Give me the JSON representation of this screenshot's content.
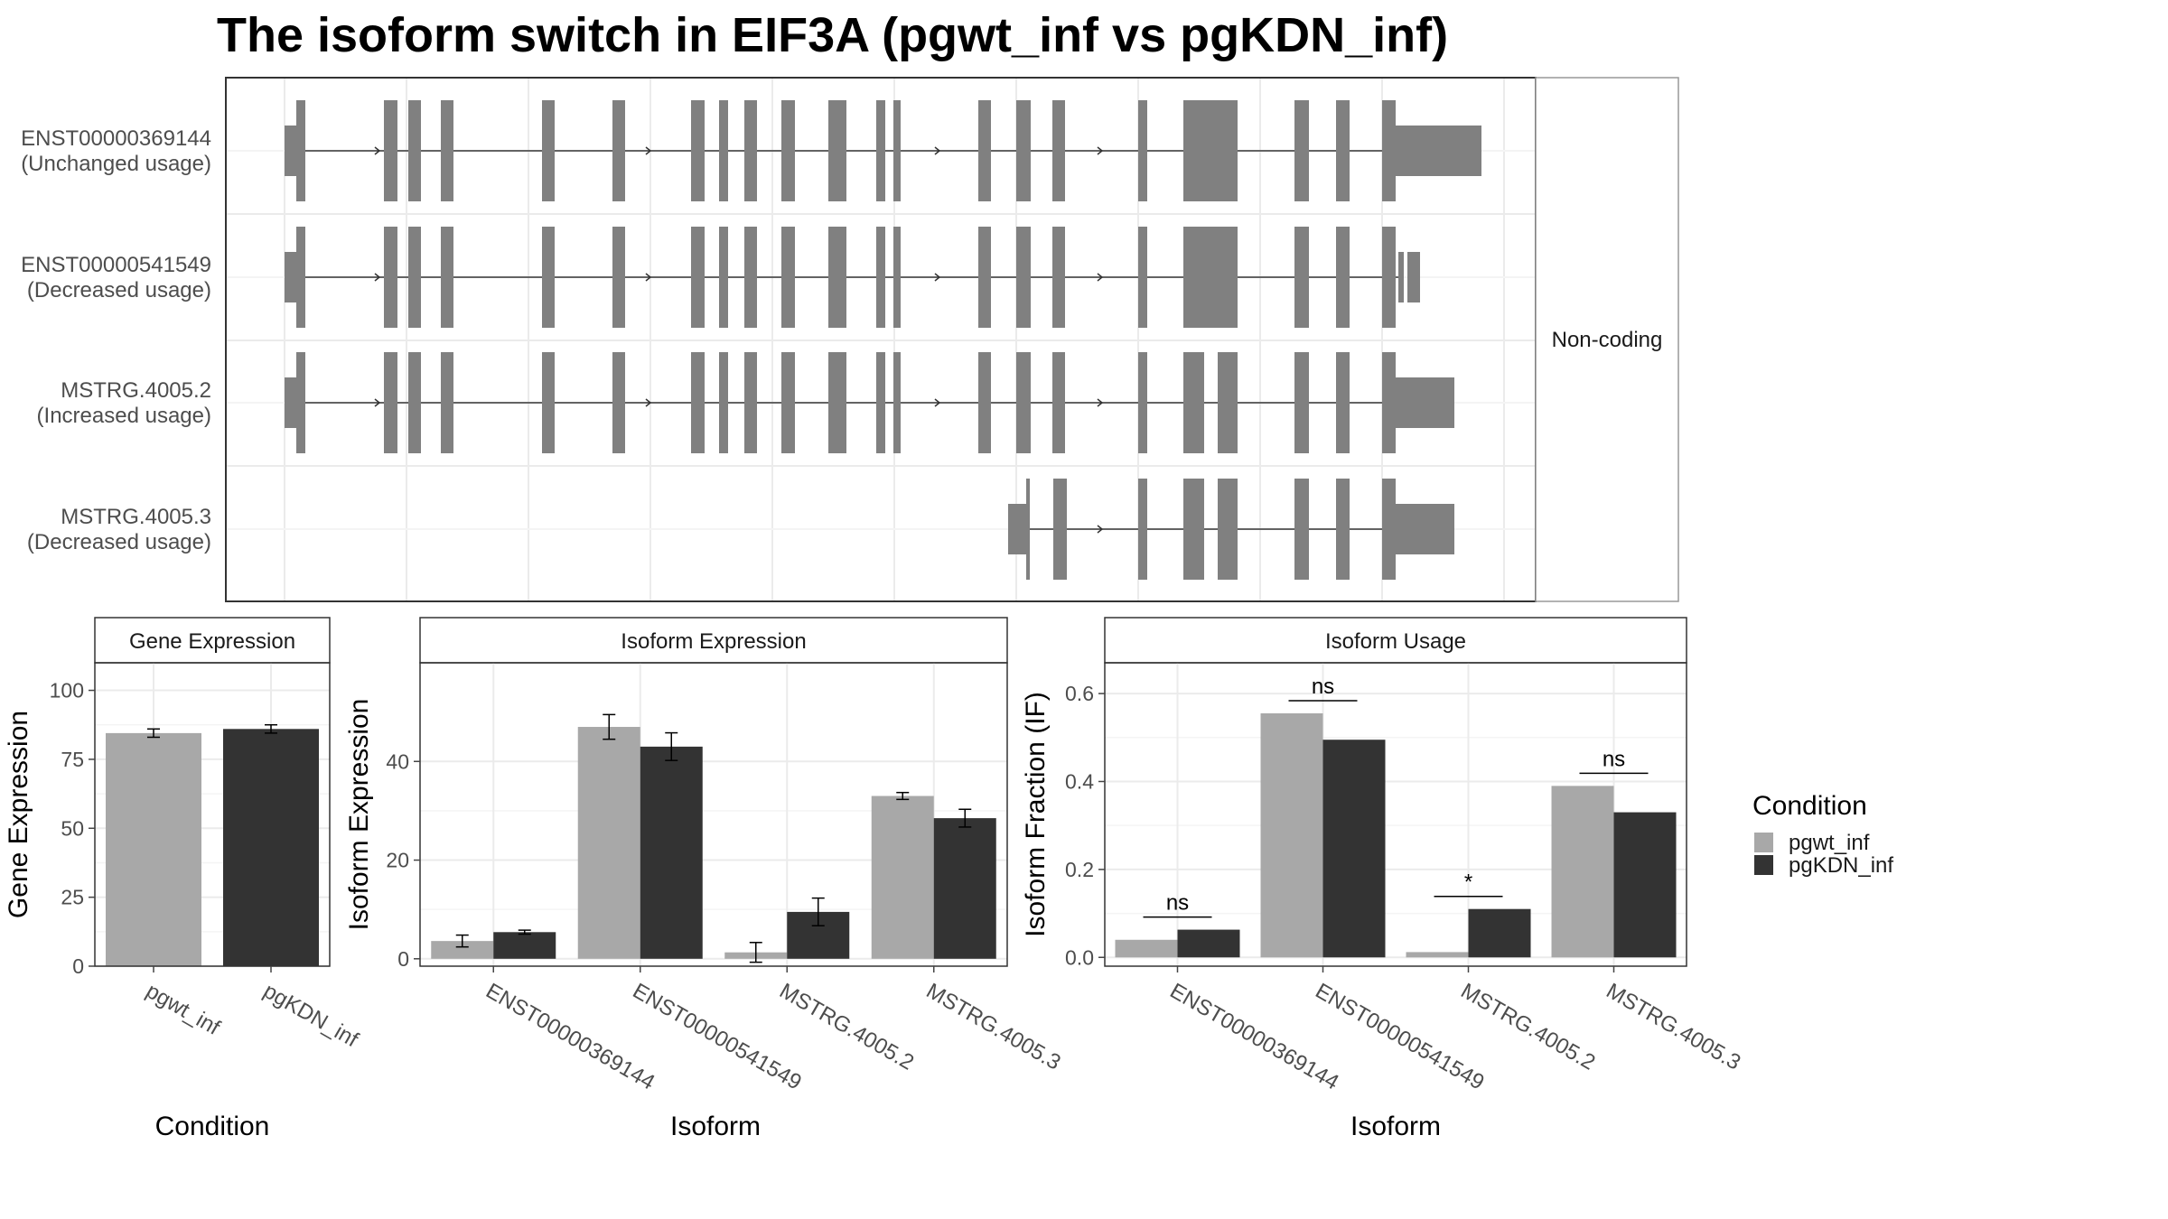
{
  "title": "The isoform switch in EIF3A (pgwt_inf vs pgKDN_inf)",
  "colors": {
    "pgwt_inf": "#a8a8a8",
    "pgKDN_inf": "#333333",
    "isoform_model": "#808080"
  },
  "structure_panel": {
    "strip_label": "Non-coding",
    "isoforms": [
      {
        "id": "ENST00000369144",
        "note": "(Unchanged usage)"
      },
      {
        "id": "ENST00000541549",
        "note": "(Decreased usage)"
      },
      {
        "id": "MSTRG.4005.2",
        "note": "(Increased usage)"
      },
      {
        "id": "MSTRG.4005.3",
        "note": "(Decreased usage)"
      }
    ]
  },
  "legend": {
    "title": "Condition",
    "items": [
      "pgwt_inf",
      "pgKDN_inf"
    ]
  },
  "chart_data": [
    {
      "type": "bar",
      "panel": "Gene Expression",
      "xlabel": "Condition",
      "ylabel": "Gene Expression",
      "categories": [
        "pgwt_inf",
        "pgKDN_inf"
      ],
      "values": [
        84.5,
        86
      ],
      "errors": [
        1.5,
        1.5
      ],
      "ylim": [
        0,
        110
      ],
      "yticks": [
        0,
        25,
        50,
        75,
        100
      ],
      "grid": true
    },
    {
      "type": "bar",
      "panel": "Isoform Expression",
      "xlabel": "Isoform",
      "ylabel": "Isoform Expression",
      "categories": [
        "ENST00000369144",
        "ENST00000541549",
        "MSTRG.4005.2",
        "MSTRG.4005.3"
      ],
      "series": [
        {
          "name": "pgwt_inf",
          "values": [
            3.6,
            47,
            1.3,
            33
          ],
          "errors": [
            1.2,
            2.5,
            2.0,
            0.7
          ]
        },
        {
          "name": "pgKDN_inf",
          "values": [
            5.4,
            43,
            9.5,
            28.5
          ],
          "errors": [
            0.4,
            2.8,
            2.8,
            1.8
          ]
        }
      ],
      "ylim": [
        -1.5,
        60
      ],
      "yticks": [
        0,
        20,
        40
      ],
      "grid": true
    },
    {
      "type": "bar",
      "panel": "Isoform Usage",
      "xlabel": "Isoform",
      "ylabel": "Isoform Fraction (IF)",
      "categories": [
        "ENST00000369144",
        "ENST00000541549",
        "MSTRG.4005.2",
        "MSTRG.4005.3"
      ],
      "series": [
        {
          "name": "pgwt_inf",
          "values": [
            0.04,
            0.555,
            0.012,
            0.39
          ]
        },
        {
          "name": "pgKDN_inf",
          "values": [
            0.063,
            0.495,
            0.11,
            0.33
          ]
        }
      ],
      "significance": [
        "ns",
        "ns",
        "*",
        "ns"
      ],
      "ylim": [
        -0.02,
        0.67
      ],
      "yticks": [
        0.0,
        0.2,
        0.4,
        0.6
      ],
      "grid": true
    }
  ]
}
